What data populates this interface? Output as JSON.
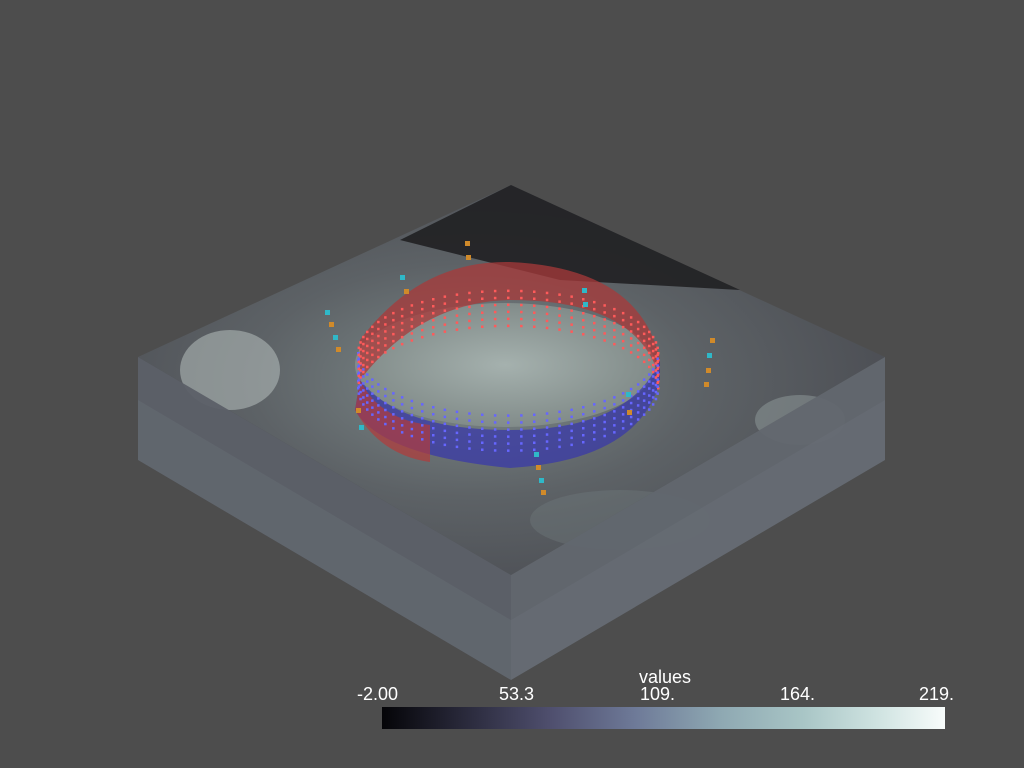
{
  "scene": {
    "background_color": "#4d4d4d",
    "objects": [
      "semi-transparent volume slab",
      "cylindrical ring surface with point markers",
      "scattered point markers"
    ]
  },
  "colorbar": {
    "title": "values",
    "ticks": [
      "-2.00",
      "53.3",
      "109.",
      "164.",
      "219."
    ],
    "range": [
      -2.0,
      219.0
    ],
    "colormap": "bone"
  }
}
